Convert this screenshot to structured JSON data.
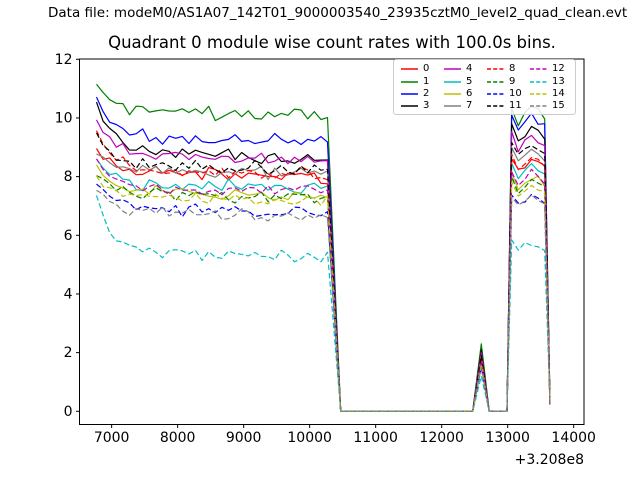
{
  "header": {
    "text": "Data file: modeM0/AS1A07_142T01_9000003540_23935cztM0_level2_quad_clean.evt"
  },
  "chart_data": {
    "type": "line",
    "title": "Quadrant 0 module wise count rates with 100.0s bins.",
    "xlabel": "",
    "ylabel": "",
    "grid": false,
    "x_axis": {
      "ticks": [
        7000,
        8000,
        9000,
        10000,
        11000,
        12000,
        13000,
        14000
      ],
      "offset_label": "+3.208e8",
      "lim": [
        6513,
        14156
      ]
    },
    "y_axis": {
      "ticks": [
        0,
        2,
        4,
        6,
        8,
        10,
        12
      ],
      "lim": [
        -0.45,
        12.01
      ]
    },
    "bin_seconds": 100,
    "legend": {
      "position": "upper right",
      "columns": 4,
      "labels": [
        "0",
        "1",
        "2",
        "3",
        "4",
        "5",
        "6",
        "7",
        "8",
        "9",
        "10",
        "11",
        "12",
        "13",
        "14",
        "15"
      ]
    },
    "segments": {
      "a_start": 6770,
      "a_end": 10330,
      "drop_end": 10470,
      "zero1_end": 12470,
      "bump_peak_x": 12600,
      "bump_end": 12720,
      "zero2_end": 12990,
      "c_first": 13060,
      "c_step": 100,
      "data_end": 13640,
      "tail_value": 0.35
    },
    "c_shape": [
      0.35,
      -0.2,
      0.05,
      0.3,
      0.1,
      -0.1
    ],
    "series": [
      {
        "label": "0",
        "color": "#ff0000",
        "dashed": false,
        "a_start": 9.0,
        "a_mid": 8.25,
        "a_end": 8.0,
        "bump_peak": 1.8,
        "c_level": 8.4
      },
      {
        "label": "1",
        "color": "#008000",
        "dashed": false,
        "a_start": 11.2,
        "a_mid": 10.25,
        "a_end": 10.1,
        "bump_peak": 2.3,
        "c_level": 10.1
      },
      {
        "label": "2",
        "color": "#0000ff",
        "dashed": false,
        "a_start": 10.7,
        "a_mid": 9.35,
        "a_end": 9.2,
        "bump_peak": 2.0,
        "c_level": 9.8
      },
      {
        "label": "3",
        "color": "#000000",
        "dashed": false,
        "a_start": 10.5,
        "a_mid": 8.95,
        "a_end": 8.6,
        "bump_peak": 2.1,
        "c_level": 9.4
      },
      {
        "label": "4",
        "color": "#bf00bf",
        "dashed": false,
        "a_start": 10.0,
        "a_mid": 8.8,
        "a_end": 8.5,
        "bump_peak": 2.0,
        "c_level": 9.1
      },
      {
        "label": "5",
        "color": "#00bfbf",
        "dashed": false,
        "a_start": 8.6,
        "a_mid": 7.75,
        "a_end": 7.6,
        "bump_peak": 1.7,
        "c_level": 8.2
      },
      {
        "label": "6",
        "color": "#bfbf00",
        "dashed": false,
        "a_start": 8.3,
        "a_mid": 7.5,
        "a_end": 7.3,
        "bump_peak": 1.6,
        "c_level": 7.8
      },
      {
        "label": "7",
        "color": "#808080",
        "dashed": false,
        "a_start": 8.8,
        "a_mid": 8.25,
        "a_end": 8.1,
        "bump_peak": 1.9,
        "c_level": 8.7
      },
      {
        "label": "8",
        "color": "#ff0000",
        "dashed": true,
        "a_start": 9.6,
        "a_mid": 8.25,
        "a_end": 8.05,
        "bump_peak": 1.8,
        "c_level": 8.5
      },
      {
        "label": "9",
        "color": "#008000",
        "dashed": true,
        "a_start": 8.1,
        "a_mid": 7.4,
        "a_end": 7.3,
        "bump_peak": 1.6,
        "c_level": 7.7
      },
      {
        "label": "10",
        "color": "#0000ff",
        "dashed": true,
        "a_start": 7.8,
        "a_mid": 6.95,
        "a_end": 6.7,
        "bump_peak": 1.5,
        "c_level": 7.2
      },
      {
        "label": "11",
        "color": "#000000",
        "dashed": true,
        "a_start": 9.5,
        "a_mid": 8.45,
        "a_end": 8.3,
        "bump_peak": 1.9,
        "c_level": 8.8
      },
      {
        "label": "12",
        "color": "#bf00bf",
        "dashed": true,
        "a_start": 8.6,
        "a_mid": 7.65,
        "a_end": 7.5,
        "bump_peak": 1.7,
        "c_level": 8.0
      },
      {
        "label": "13",
        "color": "#00bfbf",
        "dashed": true,
        "a_start": 7.3,
        "a_mid": 5.5,
        "a_end": 5.25,
        "bump_peak": 1.2,
        "c_level": 5.6
      },
      {
        "label": "14",
        "color": "#bfbf00",
        "dashed": true,
        "a_start": 8.0,
        "a_mid": 7.35,
        "a_end": 7.15,
        "bump_peak": 1.6,
        "c_level": 7.5
      },
      {
        "label": "15",
        "color": "#808080",
        "dashed": true,
        "a_start": 7.6,
        "a_mid": 6.85,
        "a_end": 6.6,
        "bump_peak": 1.5,
        "c_level": 7.1
      }
    ]
  }
}
